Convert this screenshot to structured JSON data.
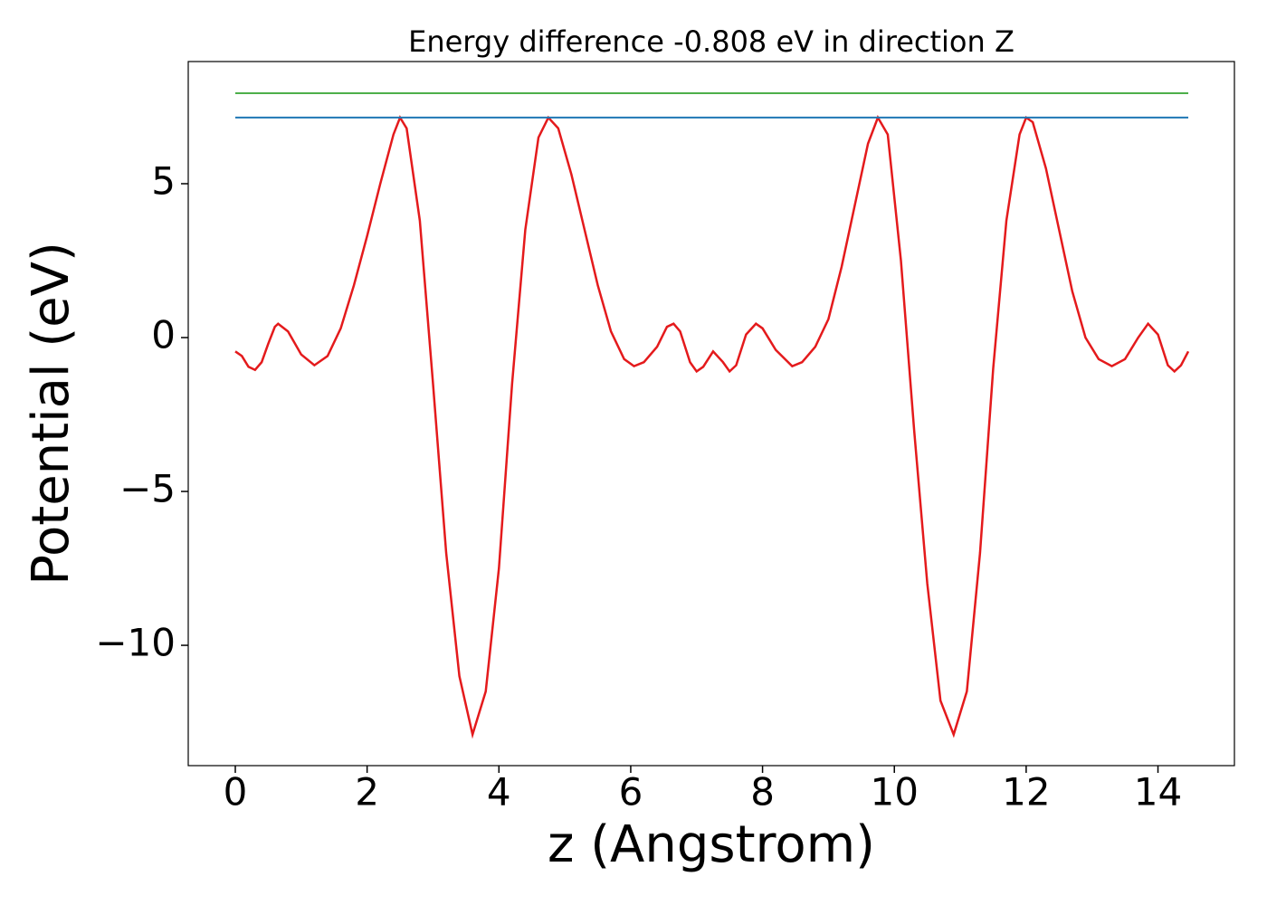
{
  "chart_data": {
    "type": "line",
    "title": "Energy difference -0.808 eV in direction Z",
    "xlabel": "z (Angstrom)",
    "ylabel": "Potential (eV)",
    "xlim": [
      -0.714,
      15.16
    ],
    "ylim": [
      -13.91,
      8.97
    ],
    "xticks": [
      0,
      2,
      4,
      6,
      8,
      10,
      12,
      14
    ],
    "yticks": [
      {
        "value": -10,
        "label": "−10"
      },
      {
        "value": -5,
        "label": "−5"
      },
      0,
      5
    ],
    "grid": false,
    "series": [
      {
        "color": "#e41a1c",
        "x": [
          0,
          0.1,
          0.2,
          0.3,
          0.4,
          0.5,
          0.6,
          0.65,
          0.8,
          1.0,
          1.2,
          1.4,
          1.6,
          1.8,
          2.0,
          2.2,
          2.4,
          2.5,
          2.6,
          2.8,
          3.0,
          3.2,
          3.4,
          3.6,
          3.8,
          4.0,
          4.2,
          4.4,
          4.6,
          4.75,
          4.9,
          5.1,
          5.3,
          5.5,
          5.7,
          5.9,
          6.05,
          6.2,
          6.4,
          6.55,
          6.65,
          6.75,
          6.9,
          7.0,
          7.1,
          7.25,
          7.4,
          7.5,
          7.6,
          7.75,
          7.9,
          8.0,
          8.2,
          8.45,
          8.6,
          8.8,
          9.0,
          9.2,
          9.4,
          9.6,
          9.75,
          9.9,
          10.1,
          10.3,
          10.5,
          10.7,
          10.9,
          11.1,
          11.3,
          11.5,
          11.7,
          11.9,
          12.0,
          12.1,
          12.3,
          12.5,
          12.7,
          12.9,
          13.1,
          13.3,
          13.5,
          13.7,
          13.85,
          14.0,
          14.15,
          14.25,
          14.35,
          14.46
        ],
        "values": [
          -0.45,
          -0.6,
          -0.95,
          -1.05,
          -0.8,
          -0.2,
          0.35,
          0.45,
          0.2,
          -0.55,
          -0.9,
          -0.6,
          0.3,
          1.7,
          3.3,
          5.0,
          6.6,
          7.15,
          6.8,
          3.8,
          -1.5,
          -7,
          -11,
          -12.9,
          -11.5,
          -7.5,
          -1.5,
          3.5,
          6.5,
          7.15,
          6.8,
          5.3,
          3.5,
          1.7,
          0.2,
          -0.7,
          -0.93,
          -0.8,
          -0.3,
          0.35,
          0.45,
          0.2,
          -0.8,
          -1.1,
          -0.95,
          -0.45,
          -0.8,
          -1.1,
          -0.9,
          0.1,
          0.45,
          0.3,
          -0.4,
          -0.93,
          -0.8,
          -0.3,
          0.6,
          2.3,
          4.3,
          6.3,
          7.15,
          6.6,
          2.5,
          -3,
          -8,
          -11.8,
          -12.9,
          -11.5,
          -7,
          -1,
          3.8,
          6.6,
          7.15,
          7.0,
          5.5,
          3.5,
          1.5,
          0.0,
          -0.7,
          -0.93,
          -0.7,
          0.0,
          0.45,
          0.1,
          -0.9,
          -1.1,
          -0.9,
          -0.45
        ]
      },
      {
        "color": "#1f77b4",
        "x": [
          0,
          14.46
        ],
        "values": [
          7.15,
          7.15
        ]
      },
      {
        "color": "#4daf4a",
        "x": [
          0,
          14.46
        ],
        "values": [
          7.94,
          7.94
        ]
      }
    ]
  }
}
